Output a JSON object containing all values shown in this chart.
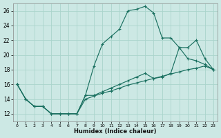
{
  "xlabel": "Humidex (Indice chaleur)",
  "bg_color": "#cce8e4",
  "grid_color": "#aad4cc",
  "line_color": "#1a7060",
  "xlim": [
    -0.5,
    23.5
  ],
  "ylim": [
    11,
    27
  ],
  "xticks": [
    0,
    1,
    2,
    3,
    4,
    5,
    6,
    7,
    8,
    9,
    10,
    11,
    12,
    13,
    14,
    15,
    16,
    17,
    18,
    19,
    20,
    21,
    22,
    23
  ],
  "yticks": [
    12,
    14,
    16,
    18,
    20,
    22,
    24,
    26
  ],
  "series": [
    {
      "x": [
        0,
        1,
        2,
        3,
        4,
        5,
        6,
        7,
        8,
        9,
        10,
        11,
        12,
        13,
        14,
        15,
        16,
        17,
        18,
        19,
        20,
        21,
        22,
        23
      ],
      "y": [
        16,
        14,
        13,
        13,
        12,
        12,
        12,
        12,
        14.5,
        18.5,
        21.5,
        22.5,
        23.5,
        26.0,
        26.2,
        26.6,
        25.7,
        22.3,
        22.3,
        21.0,
        19.5,
        19.2,
        18.7,
        18.0
      ]
    },
    {
      "x": [
        0,
        1,
        2,
        3,
        4,
        5,
        6,
        7,
        8,
        9,
        10,
        11,
        12,
        13,
        14,
        15,
        16,
        17,
        18,
        19,
        20,
        21,
        22,
        23
      ],
      "y": [
        16,
        14,
        13,
        13,
        12,
        12,
        12,
        12,
        14.5,
        14.5,
        15.0,
        15.5,
        16.0,
        16.5,
        17.0,
        17.5,
        16.8,
        17.0,
        17.5,
        21.0,
        21.0,
        22.0,
        19.5,
        18.0
      ]
    },
    {
      "x": [
        0,
        1,
        2,
        3,
        4,
        5,
        6,
        7,
        8,
        9,
        10,
        11,
        12,
        13,
        14,
        15,
        16,
        17,
        18,
        19,
        20,
        21,
        22,
        23
      ],
      "y": [
        16,
        14,
        13,
        13,
        12,
        12,
        12,
        12,
        14.0,
        14.4,
        14.8,
        15.1,
        15.5,
        15.9,
        16.2,
        16.5,
        16.8,
        17.1,
        17.4,
        17.7,
        18.0,
        18.2,
        18.5,
        18.0
      ]
    }
  ]
}
